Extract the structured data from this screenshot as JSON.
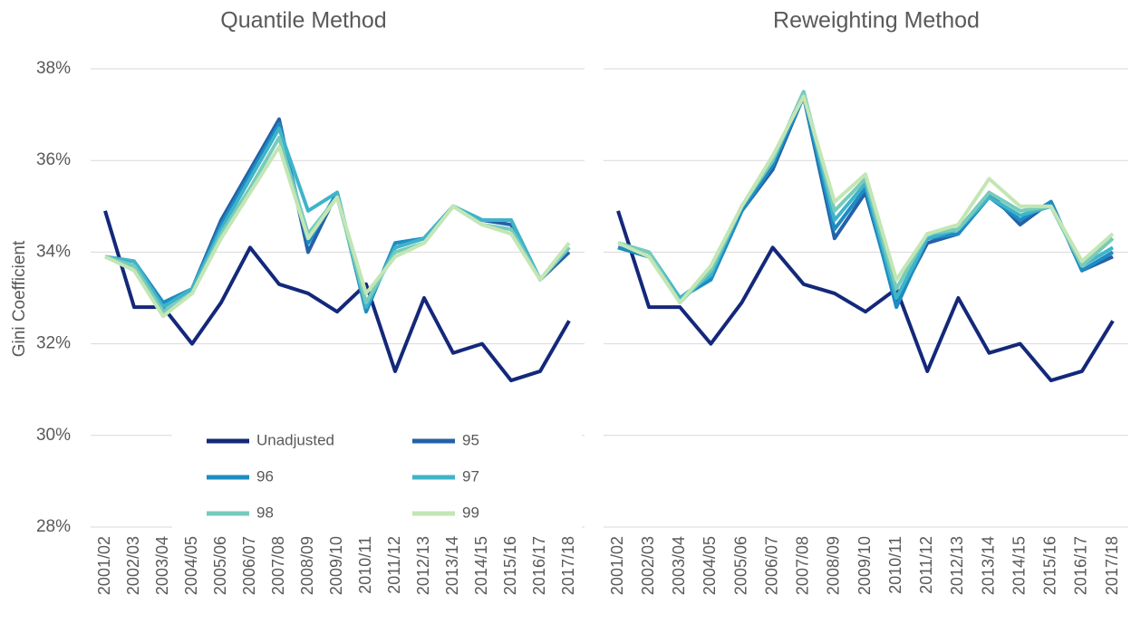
{
  "chart_data": [
    {
      "type": "line",
      "title": "Quantile Method",
      "y_label": "Gini Coefficient",
      "legend": "lower center",
      "grid": true,
      "categories": [
        "2001/02",
        "2002/03",
        "2003/04",
        "2004/05",
        "2005/06",
        "2006/07",
        "2007/08",
        "2008/09",
        "2009/10",
        "2010/11",
        "2011/12",
        "2012/13",
        "2013/14",
        "2014/15",
        "2015/16",
        "2016/17",
        "2017/18"
      ],
      "ylim": [
        28,
        38
      ],
      "yticks": [
        {
          "value": 28,
          "label": "28%"
        },
        {
          "value": 30,
          "label": "30%"
        },
        {
          "value": 32,
          "label": "32%"
        },
        {
          "value": 34,
          "label": "34%"
        },
        {
          "value": 36,
          "label": "36%"
        },
        {
          "value": 38,
          "label": "38%"
        }
      ],
      "series": [
        {
          "name": "Unadjusted",
          "color": "#14287a",
          "values": [
            34.9,
            32.8,
            32.8,
            32.0,
            32.9,
            34.1,
            33.3,
            33.1,
            32.7,
            33.3,
            31.4,
            33.0,
            31.8,
            32.0,
            31.2,
            31.4,
            32.5
          ]
        },
        {
          "name": "95",
          "color": "#2461a8",
          "values": [
            33.9,
            33.7,
            32.8,
            33.2,
            34.7,
            35.8,
            36.9,
            34.0,
            35.3,
            32.8,
            34.1,
            34.3,
            35.0,
            34.7,
            34.6,
            33.4,
            34.0
          ]
        },
        {
          "name": "96",
          "color": "#1d8cc3",
          "values": [
            33.9,
            33.8,
            32.9,
            33.2,
            34.6,
            35.7,
            36.8,
            34.2,
            35.3,
            32.7,
            34.2,
            34.3,
            35.0,
            34.7,
            34.7,
            33.4,
            34.1
          ]
        },
        {
          "name": "97",
          "color": "#3fb4c9",
          "values": [
            33.9,
            33.8,
            32.8,
            33.2,
            34.5,
            35.6,
            36.7,
            34.9,
            35.3,
            32.8,
            34.1,
            34.3,
            35.0,
            34.7,
            34.7,
            33.4,
            34.1
          ]
        },
        {
          "name": "98",
          "color": "#77cbbb",
          "values": [
            33.9,
            33.7,
            32.7,
            33.1,
            34.4,
            35.4,
            36.5,
            34.4,
            35.2,
            32.9,
            34.0,
            34.2,
            35.0,
            34.6,
            34.5,
            33.4,
            34.1
          ]
        },
        {
          "name": "99",
          "color": "#c3e6b4",
          "values": [
            33.9,
            33.6,
            32.6,
            33.1,
            34.3,
            35.3,
            36.3,
            34.3,
            35.2,
            33.1,
            33.9,
            34.2,
            35.0,
            34.6,
            34.4,
            33.4,
            34.2
          ]
        }
      ]
    },
    {
      "type": "line",
      "title": "Reweighting Method",
      "grid": true,
      "categories": [
        "2001/02",
        "2002/03",
        "2003/04",
        "2004/05",
        "2005/06",
        "2006/07",
        "2007/08",
        "2008/09",
        "2009/10",
        "2010/11",
        "2011/12",
        "2012/13",
        "2013/14",
        "2014/15",
        "2015/16",
        "2016/17",
        "2017/18"
      ],
      "ylim": [
        28,
        38
      ],
      "yticks": [
        28,
        30,
        32,
        34,
        36,
        38
      ],
      "series": [
        {
          "name": "Unadjusted",
          "color": "#14287a",
          "values": [
            34.9,
            32.8,
            32.8,
            32.0,
            32.9,
            34.1,
            33.3,
            33.1,
            32.7,
            33.2,
            31.4,
            33.0,
            31.8,
            32.0,
            31.2,
            31.4,
            32.5
          ]
        },
        {
          "name": "95",
          "color": "#2461a8",
          "values": [
            34.1,
            33.9,
            33.0,
            33.4,
            34.9,
            35.8,
            37.4,
            34.3,
            35.3,
            32.9,
            34.2,
            34.4,
            35.3,
            34.6,
            35.1,
            33.6,
            33.9
          ]
        },
        {
          "name": "96",
          "color": "#1d8cc3",
          "values": [
            34.1,
            33.9,
            33.0,
            33.4,
            34.9,
            35.9,
            37.4,
            34.5,
            35.4,
            32.8,
            34.3,
            34.4,
            35.2,
            34.7,
            35.1,
            33.6,
            34.0
          ]
        },
        {
          "name": "97",
          "color": "#3fb4c9",
          "values": [
            34.2,
            34.0,
            33.0,
            33.5,
            35.0,
            36.0,
            37.5,
            34.7,
            35.5,
            33.0,
            34.3,
            34.5,
            35.2,
            34.8,
            35.0,
            33.7,
            34.1
          ]
        },
        {
          "name": "98",
          "color": "#77cbbb",
          "values": [
            34.2,
            34.0,
            32.9,
            33.6,
            35.0,
            36.0,
            37.5,
            34.9,
            35.6,
            33.2,
            34.4,
            34.5,
            35.3,
            34.9,
            35.0,
            33.7,
            34.3
          ]
        },
        {
          "name": "99",
          "color": "#c3e6b4",
          "values": [
            34.2,
            33.9,
            32.9,
            33.7,
            35.0,
            36.1,
            37.4,
            35.1,
            35.7,
            33.4,
            34.4,
            34.6,
            35.6,
            35.0,
            35.0,
            33.8,
            34.4
          ]
        }
      ]
    }
  ]
}
